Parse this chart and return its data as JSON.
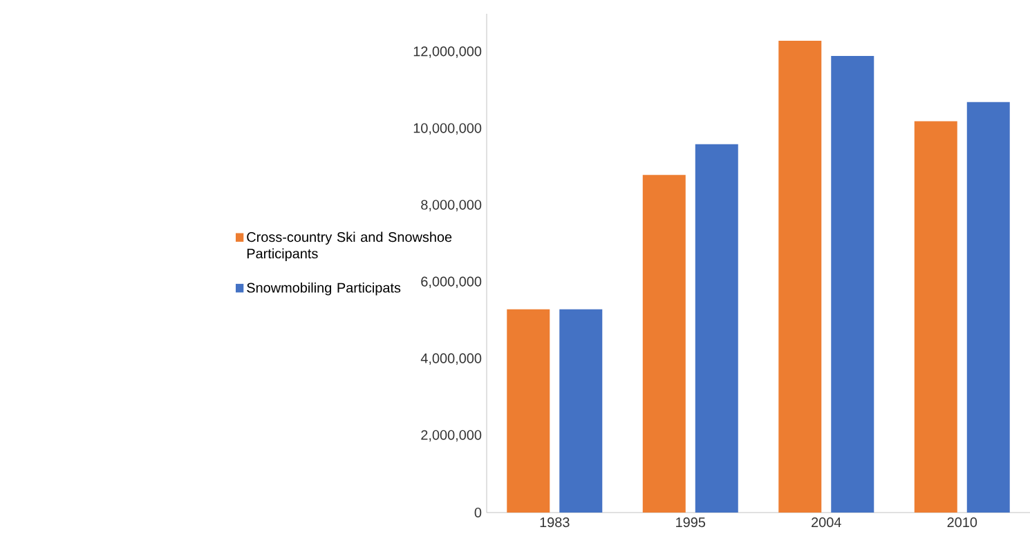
{
  "chart_data": {
    "type": "bar",
    "categories": [
      "1983",
      "1995",
      "2004",
      "2010"
    ],
    "series": [
      {
        "name": "Cross-country Ski and Snowshoe Participants",
        "color": "#ed7d31",
        "values": [
          5300000,
          8800000,
          12300000,
          10200000
        ]
      },
      {
        "name": "Snowmobiling Participats",
        "color": "#4472c4",
        "values": [
          5300000,
          9600000,
          11900000,
          10700000
        ]
      }
    ],
    "ylim": [
      0,
      13000000
    ],
    "yticks": [
      {
        "value": 0,
        "label": "0"
      },
      {
        "value": 2000000,
        "label": "2,000,000"
      },
      {
        "value": 4000000,
        "label": "4,000,000"
      },
      {
        "value": 6000000,
        "label": "6,000,000"
      },
      {
        "value": 8000000,
        "label": "8,000,000"
      },
      {
        "value": 10000000,
        "label": "10,000,000"
      },
      {
        "value": 12000000,
        "label": "12,000,000"
      }
    ],
    "grid": false,
    "legend": "left"
  }
}
